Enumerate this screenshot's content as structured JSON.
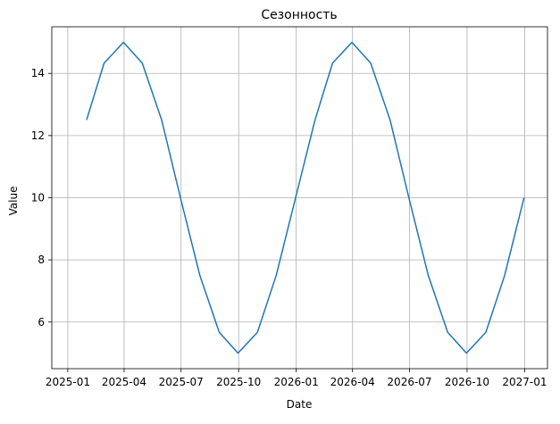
{
  "chart_data": {
    "type": "line",
    "title": "Сезонность",
    "xlabel": "Date",
    "ylabel": "Value",
    "grid": true,
    "x_range": [
      "2025-01-01",
      "2027-01-01"
    ],
    "ylim": [
      4.5,
      15.5
    ],
    "x_ticks": [
      {
        "date": "2025-01-01",
        "label": "2025-01"
      },
      {
        "date": "2025-04-01",
        "label": "2025-04"
      },
      {
        "date": "2025-07-01",
        "label": "2025-07"
      },
      {
        "date": "2025-10-01",
        "label": "2025-10"
      },
      {
        "date": "2026-01-01",
        "label": "2026-01"
      },
      {
        "date": "2026-04-01",
        "label": "2026-04"
      },
      {
        "date": "2026-07-01",
        "label": "2026-07"
      },
      {
        "date": "2026-10-01",
        "label": "2026-10"
      },
      {
        "date": "2027-01-01",
        "label": "2027-01"
      }
    ],
    "y_ticks": [
      {
        "value": 6,
        "label": "6"
      },
      {
        "value": 8,
        "label": "8"
      },
      {
        "value": 10,
        "label": "10"
      },
      {
        "value": 12,
        "label": "12"
      },
      {
        "value": 14,
        "label": "14"
      }
    ],
    "series": [
      {
        "color": "#1f77b4",
        "x": [
          "2025-01-31",
          "2025-02-28",
          "2025-03-31",
          "2025-04-30",
          "2025-05-31",
          "2025-06-30",
          "2025-07-31",
          "2025-08-31",
          "2025-09-30",
          "2025-10-31",
          "2025-11-30",
          "2025-12-31",
          "2026-01-31",
          "2026-02-28",
          "2026-03-31",
          "2026-04-30",
          "2026-05-31",
          "2026-06-30",
          "2026-07-31",
          "2026-08-31",
          "2026-09-30",
          "2026-10-31",
          "2026-11-30",
          "2026-12-31"
        ],
        "y": [
          12.5,
          14.33,
          15.0,
          14.33,
          12.5,
          10.0,
          7.5,
          5.67,
          5.0,
          5.67,
          7.5,
          10.0,
          12.5,
          14.33,
          15.0,
          14.33,
          12.5,
          10.0,
          7.5,
          5.67,
          5.0,
          5.67,
          7.5,
          10.0
        ]
      }
    ]
  }
}
